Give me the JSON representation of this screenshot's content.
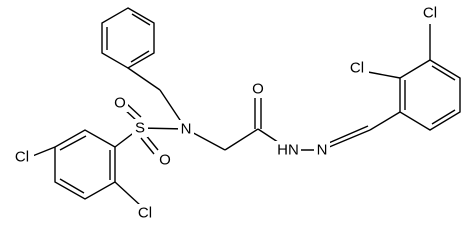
{
  "atoms": [
    {
      "label": "Cl"
    },
    {
      "label": "Cl"
    },
    {
      "label": "S"
    },
    {
      "label": "O"
    },
    {
      "label": "O"
    },
    {
      "label": "N"
    },
    {
      "label": "O"
    },
    {
      "label": "HN"
    },
    {
      "label": "N"
    },
    {
      "label": "Cl"
    },
    {
      "label": "Cl"
    }
  ]
}
